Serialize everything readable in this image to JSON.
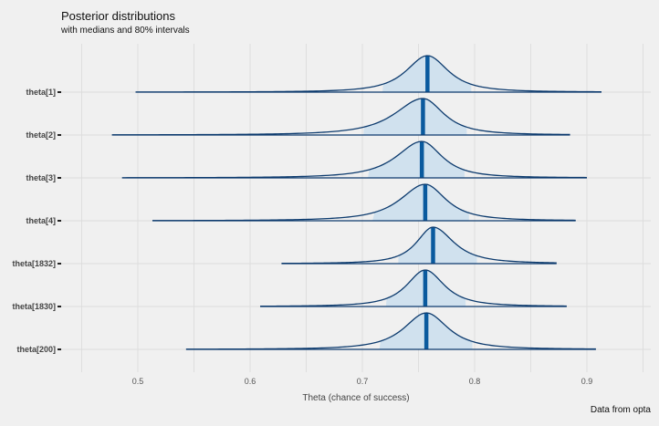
{
  "chart": {
    "title": "Posterior distributions",
    "subtitle": "with medians and 80% intervals",
    "caption": "Data from opta",
    "xlabel": "Theta (chance of success)"
  },
  "colors": {
    "background": "#f0f0f0",
    "line": "#0d3b6e",
    "fill": "#d0e1ee",
    "median": "#0a5a9e",
    "grid": "#dcdcdc"
  },
  "chart_data": {
    "type": "ridgeline",
    "title": "Posterior distributions",
    "subtitle": "with medians and 80% intervals",
    "xlabel": "Theta (chance of success)",
    "ylabel": "",
    "xlim": [
      0.43,
      0.96
    ],
    "xticks": [
      0.5,
      0.6,
      0.7,
      0.8,
      0.9
    ],
    "grid": true,
    "series": [
      {
        "name": "theta[1]",
        "min": 0.498,
        "max": 0.913,
        "median": 0.758,
        "interval80": [
          0.718,
          0.797
        ]
      },
      {
        "name": "theta[2]",
        "min": 0.477,
        "max": 0.885,
        "median": 0.754,
        "interval80": [
          0.701,
          0.793
        ]
      },
      {
        "name": "theta[3]",
        "min": 0.486,
        "max": 0.9,
        "median": 0.753,
        "interval80": [
          0.705,
          0.791
        ]
      },
      {
        "name": "theta[4]",
        "min": 0.513,
        "max": 0.89,
        "median": 0.756,
        "interval80": [
          0.709,
          0.795
        ]
      },
      {
        "name": "theta[1832]",
        "min": 0.628,
        "max": 0.873,
        "median": 0.763,
        "interval80": [
          0.732,
          0.802
        ]
      },
      {
        "name": "theta[1830]",
        "min": 0.609,
        "max": 0.882,
        "median": 0.756,
        "interval80": [
          0.721,
          0.792
        ]
      },
      {
        "name": "theta[200]",
        "min": 0.543,
        "max": 0.908,
        "median": 0.757,
        "interval80": [
          0.715,
          0.798
        ]
      }
    ]
  }
}
